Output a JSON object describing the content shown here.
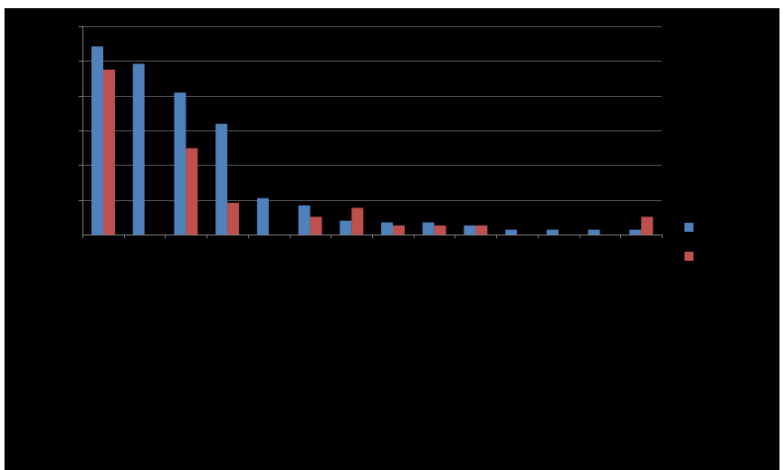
{
  "chart_data": {
    "type": "bar",
    "title": "",
    "xlabel": "",
    "ylabel": "",
    "ylim": [
      0,
      6
    ],
    "y_gridlines": [
      1,
      2,
      3,
      4,
      5,
      6
    ],
    "grid": true,
    "legend": "right",
    "categories": [
      "",
      "",
      "",
      "",
      "",
      "",
      "",
      "",
      "",
      "",
      "",
      "",
      "",
      ""
    ],
    "series": [
      {
        "color": "#4f81bd",
        "values": [
          5.42,
          4.92,
          4.09,
          3.19,
          1.05,
          0.84,
          0.4,
          0.35,
          0.35,
          0.26,
          0.14,
          0.14,
          0.14,
          0.14
        ]
      },
      {
        "color": "#c0504d",
        "values": [
          4.75,
          0,
          2.49,
          0.91,
          0,
          0.51,
          0.77,
          0.26,
          0.26,
          0.26,
          0,
          0,
          0,
          0.51
        ]
      }
    ]
  }
}
